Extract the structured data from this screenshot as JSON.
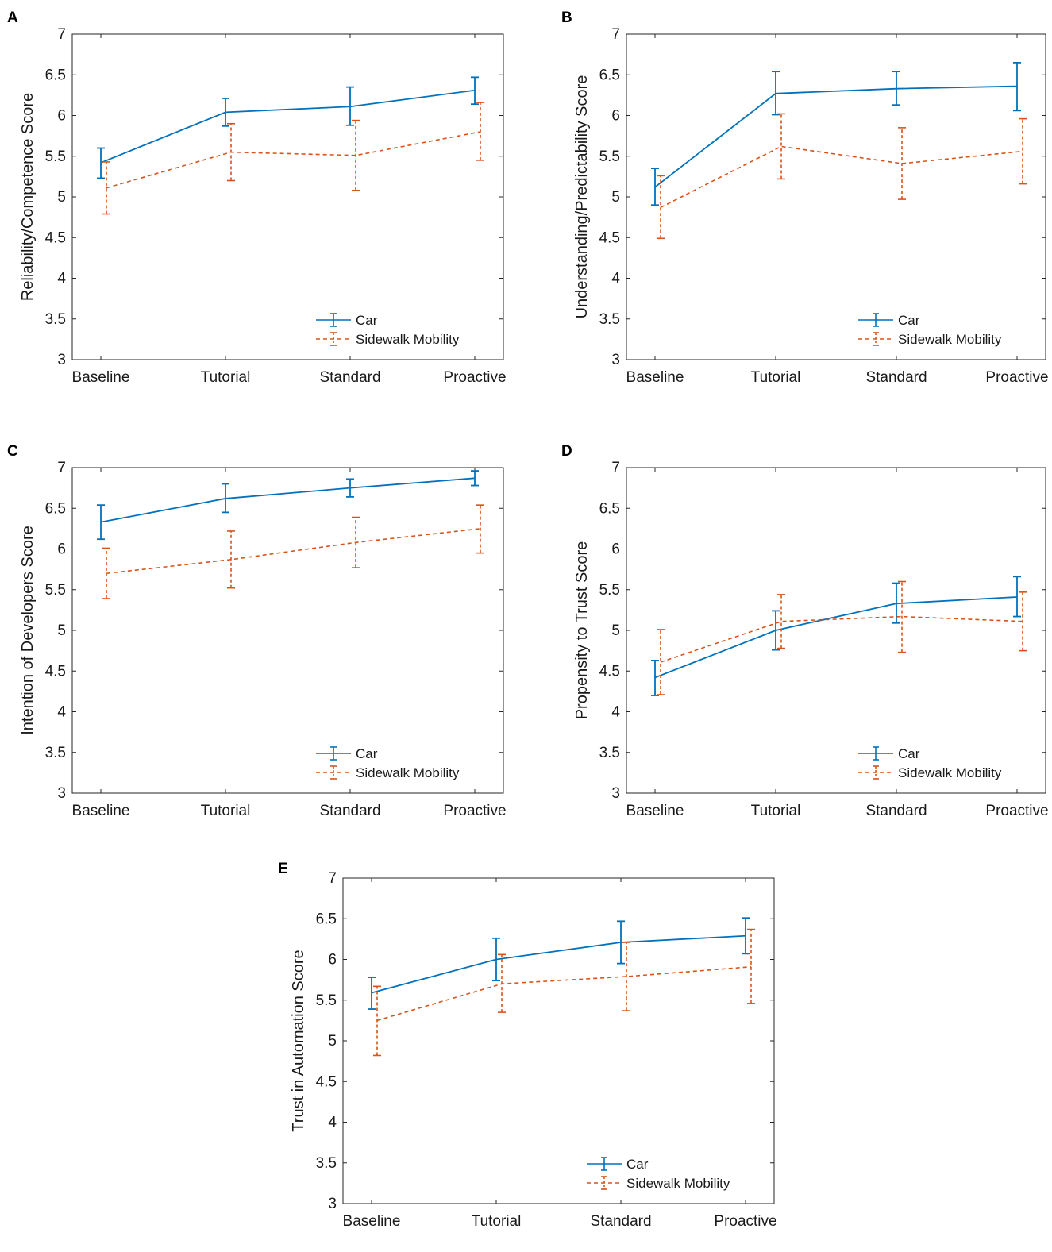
{
  "figure": {
    "colors": {
      "car": "#0072BD",
      "sidewalk": "#D95319",
      "axis": "#262626"
    }
  },
  "chart_data": [
    {
      "panel": "A",
      "type": "line",
      "categories": [
        "Baseline",
        "Tutorial",
        "Standard",
        "Proactive"
      ],
      "ylabel": "Reliability/Competence Score",
      "xlabel": "",
      "ylim": [
        3,
        7
      ],
      "yticks": [
        "3",
        "3.5",
        "4",
        "4.5",
        "5",
        "5.5",
        "6",
        "6.5",
        "7"
      ],
      "legend_position": "bottom-right",
      "series": [
        {
          "name": "Car",
          "style": "solid",
          "values": [
            5.42,
            6.04,
            6.11,
            6.31
          ],
          "lower": [
            5.23,
            5.87,
            5.88,
            6.14
          ],
          "upper": [
            5.6,
            6.21,
            6.35,
            6.47
          ]
        },
        {
          "name": "Sidewalk Mobility",
          "style": "dashed",
          "values": [
            5.11,
            5.55,
            5.51,
            5.8
          ],
          "lower": [
            4.79,
            5.2,
            5.08,
            5.45
          ],
          "upper": [
            5.43,
            5.9,
            5.94,
            6.16
          ]
        }
      ]
    },
    {
      "panel": "B",
      "type": "line",
      "categories": [
        "Baseline",
        "Tutorial",
        "Standard",
        "Proactive"
      ],
      "ylabel": "Understanding/Predictability Score",
      "xlabel": "",
      "ylim": [
        3,
        7
      ],
      "yticks": [
        "3",
        "3.5",
        "4",
        "4.5",
        "5",
        "5.5",
        "6",
        "6.5",
        "7"
      ],
      "legend_position": "bottom-right",
      "series": [
        {
          "name": "Car",
          "style": "solid",
          "values": [
            5.12,
            6.27,
            6.33,
            6.36
          ],
          "lower": [
            4.9,
            6.01,
            6.13,
            6.06
          ],
          "upper": [
            5.35,
            6.54,
            6.54,
            6.65
          ]
        },
        {
          "name": "Sidewalk Mobility",
          "style": "dashed",
          "values": [
            4.87,
            5.62,
            5.41,
            5.56
          ],
          "lower": [
            4.49,
            5.22,
            4.97,
            5.16
          ],
          "upper": [
            5.26,
            6.02,
            5.85,
            5.96
          ]
        }
      ]
    },
    {
      "panel": "C",
      "type": "line",
      "categories": [
        "Baseline",
        "Tutorial",
        "Standard",
        "Proactive"
      ],
      "ylabel": "Intention of Developers Score",
      "xlabel": "",
      "ylim": [
        3,
        7
      ],
      "yticks": [
        "3",
        "3.5",
        "4",
        "4.5",
        "5",
        "5.5",
        "6",
        "6.5",
        "7"
      ],
      "legend_position": "bottom-right",
      "series": [
        {
          "name": "Car",
          "style": "solid",
          "values": [
            6.33,
            6.62,
            6.75,
            6.87
          ],
          "lower": [
            6.12,
            6.45,
            6.64,
            6.78
          ],
          "upper": [
            6.54,
            6.8,
            6.86,
            6.96
          ]
        },
        {
          "name": "Sidewalk Mobility",
          "style": "dashed",
          "values": [
            5.7,
            5.87,
            6.08,
            6.25
          ],
          "lower": [
            5.39,
            5.52,
            5.77,
            5.95
          ],
          "upper": [
            6.01,
            6.22,
            6.39,
            6.54
          ]
        }
      ]
    },
    {
      "panel": "D",
      "type": "line",
      "categories": [
        "Baseline",
        "Tutorial",
        "Standard",
        "Proactive"
      ],
      "ylabel": "Propensity to Trust Score",
      "xlabel": "",
      "ylim": [
        3,
        7
      ],
      "yticks": [
        "3",
        "3.5",
        "4",
        "4.5",
        "5",
        "5.5",
        "6",
        "6.5",
        "7"
      ],
      "legend_position": "bottom-right",
      "series": [
        {
          "name": "Car",
          "style": "solid",
          "values": [
            4.42,
            5.0,
            5.33,
            5.41
          ],
          "lower": [
            4.2,
            4.76,
            5.09,
            5.17
          ],
          "upper": [
            4.63,
            5.24,
            5.58,
            5.66
          ]
        },
        {
          "name": "Sidewalk Mobility",
          "style": "dashed",
          "values": [
            4.61,
            5.11,
            5.17,
            5.11
          ],
          "lower": [
            4.21,
            4.78,
            4.73,
            4.75
          ],
          "upper": [
            5.01,
            5.44,
            5.6,
            5.47
          ]
        }
      ]
    },
    {
      "panel": "E",
      "type": "line",
      "categories": [
        "Baseline",
        "Tutorial",
        "Standard",
        "Proactive"
      ],
      "ylabel": "Trust in Automation Score",
      "xlabel": "",
      "ylim": [
        3,
        7
      ],
      "yticks": [
        "3",
        "3.5",
        "4",
        "4.5",
        "5",
        "5.5",
        "6",
        "6.5",
        "7"
      ],
      "legend_position": "bottom-right",
      "series": [
        {
          "name": "Car",
          "style": "solid",
          "values": [
            5.59,
            6.0,
            6.21,
            6.29
          ],
          "lower": [
            5.39,
            5.74,
            5.95,
            6.07
          ],
          "upper": [
            5.78,
            6.26,
            6.47,
            6.51
          ]
        },
        {
          "name": "Sidewalk Mobility",
          "style": "dashed",
          "values": [
            5.25,
            5.7,
            5.79,
            5.91
          ],
          "lower": [
            4.82,
            5.35,
            5.37,
            5.46
          ],
          "upper": [
            5.67,
            6.06,
            6.21,
            6.37
          ]
        }
      ]
    }
  ]
}
